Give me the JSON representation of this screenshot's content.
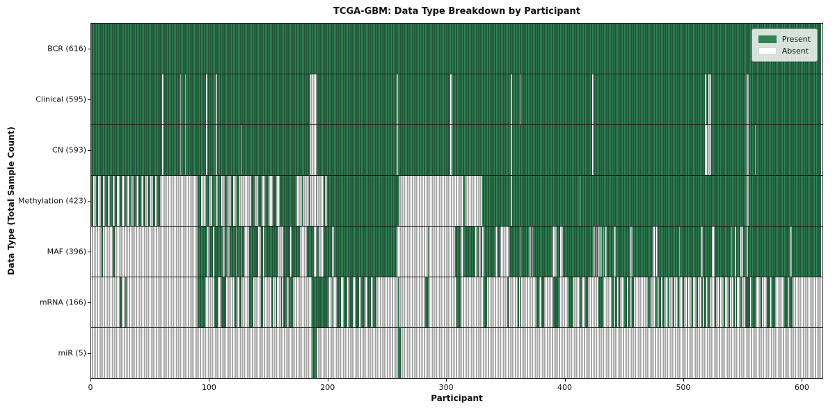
{
  "title": "TCGA-GBM: Data Type Breakdown by Participant",
  "xlabel": "Participant",
  "ylabel": "Data Type (Total Sample Count)",
  "legend": {
    "present_label": "Present",
    "absent_label": "Absent"
  },
  "colors": {
    "present_fill": "#338257",
    "present_edge": "#1f5638",
    "absent_fill": "#ffffff",
    "absent_edge": "#a6a6a6"
  },
  "chart_data": {
    "type": "heatmap",
    "title": "TCGA-GBM: Data Type Breakdown by Participant",
    "xlabel": "Participant",
    "ylabel": "Data Type (Total Sample Count)",
    "legend": [
      "Present",
      "Absent"
    ],
    "legend_position": "upper right",
    "n_participants": 616,
    "x_domain": [
      0,
      618
    ],
    "x_ticks": [
      0,
      100,
      200,
      300,
      400,
      500,
      600
    ],
    "rows": [
      {
        "name": "BCR",
        "label": "BCR (616)",
        "total": 616,
        "runs": [
          [
            0,
            616,
            "P"
          ]
        ]
      },
      {
        "name": "Clinical",
        "label": "Clinical (595)",
        "total": 595,
        "runs": [
          [
            0,
            60,
            "P"
          ],
          [
            60,
            61,
            "A"
          ],
          [
            61,
            75,
            "P"
          ],
          [
            75,
            76,
            "A"
          ],
          [
            76,
            79,
            "P"
          ],
          [
            79,
            80,
            "A"
          ],
          [
            80,
            97,
            "P"
          ],
          [
            97,
            98,
            "A"
          ],
          [
            98,
            105,
            "P"
          ],
          [
            105,
            106,
            "A"
          ],
          [
            106,
            185,
            "P"
          ],
          [
            185,
            190,
            "A"
          ],
          [
            190,
            258,
            "P"
          ],
          [
            258,
            259,
            "A"
          ],
          [
            259,
            303,
            "P"
          ],
          [
            303,
            305,
            "A"
          ],
          [
            305,
            354,
            "P"
          ],
          [
            354,
            355,
            "A"
          ],
          [
            355,
            362,
            "P"
          ],
          [
            362,
            363,
            "A"
          ],
          [
            363,
            423,
            "P"
          ],
          [
            423,
            424,
            "A"
          ],
          [
            424,
            518,
            "P"
          ],
          [
            518,
            519,
            "A"
          ],
          [
            519,
            521,
            "P"
          ],
          [
            521,
            523,
            "A"
          ],
          [
            523,
            553,
            "P"
          ],
          [
            553,
            555,
            "A"
          ],
          [
            555,
            616,
            "P"
          ]
        ]
      },
      {
        "name": "CN",
        "label": "CN (593)",
        "total": 593,
        "runs": [
          [
            0,
            60,
            "P"
          ],
          [
            60,
            61,
            "A"
          ],
          [
            61,
            75,
            "P"
          ],
          [
            75,
            76,
            "A"
          ],
          [
            76,
            79,
            "P"
          ],
          [
            79,
            80,
            "A"
          ],
          [
            80,
            97,
            "P"
          ],
          [
            97,
            98,
            "A"
          ],
          [
            98,
            105,
            "P"
          ],
          [
            105,
            106,
            "A"
          ],
          [
            106,
            126,
            "P"
          ],
          [
            126,
            127,
            "A"
          ],
          [
            127,
            185,
            "P"
          ],
          [
            185,
            190,
            "A"
          ],
          [
            190,
            258,
            "P"
          ],
          [
            258,
            259,
            "A"
          ],
          [
            259,
            303,
            "P"
          ],
          [
            303,
            305,
            "A"
          ],
          [
            305,
            354,
            "P"
          ],
          [
            354,
            355,
            "A"
          ],
          [
            355,
            423,
            "P"
          ],
          [
            423,
            424,
            "A"
          ],
          [
            424,
            518,
            "P"
          ],
          [
            518,
            520,
            "A"
          ],
          [
            520,
            521,
            "P"
          ],
          [
            521,
            523,
            "A"
          ],
          [
            523,
            553,
            "P"
          ],
          [
            553,
            555,
            "A"
          ],
          [
            555,
            560,
            "P"
          ],
          [
            560,
            561,
            "A"
          ],
          [
            561,
            616,
            "P"
          ]
        ]
      },
      {
        "name": "Methylation",
        "label": "Methylation (423)",
        "total": 423,
        "runs": [
          [
            0,
            60,
            "M",
            2,
            2
          ],
          [
            60,
            90,
            "A"
          ],
          [
            90,
            93,
            "P"
          ],
          [
            93,
            97,
            "A"
          ],
          [
            97,
            108,
            "M",
            3,
            2
          ],
          [
            108,
            125,
            "M",
            2,
            3
          ],
          [
            125,
            135,
            "A"
          ],
          [
            135,
            162,
            "M",
            3,
            3
          ],
          [
            162,
            172,
            "P"
          ],
          [
            172,
            199,
            "M",
            1,
            5
          ],
          [
            199,
            260,
            "P"
          ],
          [
            260,
            314,
            "A"
          ],
          [
            314,
            316,
            "P"
          ],
          [
            316,
            330,
            "A"
          ],
          [
            330,
            354,
            "P"
          ],
          [
            354,
            355,
            "A"
          ],
          [
            355,
            412,
            "P"
          ],
          [
            412,
            413,
            "A"
          ],
          [
            413,
            553,
            "P"
          ],
          [
            553,
            555,
            "A"
          ],
          [
            555,
            616,
            "P"
          ]
        ]
      },
      {
        "name": "MAF",
        "label": "MAF (396)",
        "total": 396,
        "runs": [
          [
            0,
            9,
            "A"
          ],
          [
            9,
            10,
            "P"
          ],
          [
            10,
            18,
            "A"
          ],
          [
            18,
            20,
            "P"
          ],
          [
            20,
            90,
            "A"
          ],
          [
            90,
            98,
            "P"
          ],
          [
            98,
            100,
            "A"
          ],
          [
            100,
            103,
            "P"
          ],
          [
            103,
            104,
            "A"
          ],
          [
            104,
            109,
            "P"
          ],
          [
            109,
            119,
            "M",
            2,
            2
          ],
          [
            119,
            129,
            "M",
            3,
            1
          ],
          [
            129,
            133,
            "A"
          ],
          [
            133,
            141,
            "P"
          ],
          [
            141,
            143,
            "A"
          ],
          [
            143,
            145,
            "P"
          ],
          [
            145,
            146,
            "A"
          ],
          [
            146,
            158,
            "P"
          ],
          [
            158,
            162,
            "A"
          ],
          [
            162,
            168,
            "P"
          ],
          [
            168,
            169,
            "A"
          ],
          [
            169,
            176,
            "P"
          ],
          [
            176,
            182,
            "A"
          ],
          [
            182,
            188,
            "P"
          ],
          [
            188,
            190,
            "A"
          ],
          [
            190,
            192,
            "P"
          ],
          [
            192,
            196,
            "A"
          ],
          [
            196,
            203,
            "P"
          ],
          [
            203,
            205,
            "A"
          ],
          [
            205,
            258,
            "P"
          ],
          [
            258,
            284,
            "A"
          ],
          [
            284,
            285,
            "P"
          ],
          [
            285,
            307,
            "A"
          ],
          [
            307,
            312,
            "P"
          ],
          [
            312,
            314,
            "A"
          ],
          [
            314,
            323,
            "P"
          ],
          [
            323,
            333,
            "M",
            1,
            2
          ],
          [
            333,
            341,
            "P"
          ],
          [
            341,
            343,
            "A"
          ],
          [
            343,
            345,
            "P"
          ],
          [
            345,
            353,
            "A"
          ],
          [
            353,
            362,
            "P"
          ],
          [
            362,
            363,
            "A"
          ],
          [
            363,
            370,
            "P"
          ],
          [
            370,
            371,
            "A"
          ],
          [
            371,
            372,
            "P"
          ],
          [
            372,
            373,
            "A"
          ],
          [
            373,
            389,
            "P"
          ],
          [
            389,
            393,
            "A"
          ],
          [
            393,
            396,
            "P"
          ],
          [
            396,
            398,
            "A"
          ],
          [
            398,
            423,
            "P"
          ],
          [
            423,
            435,
            "M",
            1,
            1
          ],
          [
            435,
            441,
            "P"
          ],
          [
            441,
            443,
            "A"
          ],
          [
            443,
            455,
            "P"
          ],
          [
            455,
            457,
            "A"
          ],
          [
            457,
            474,
            "P"
          ],
          [
            474,
            476,
            "A"
          ],
          [
            476,
            477,
            "P"
          ],
          [
            477,
            478,
            "A"
          ],
          [
            478,
            496,
            "P"
          ],
          [
            496,
            497,
            "A"
          ],
          [
            497,
            515,
            "P"
          ],
          [
            515,
            516,
            "A"
          ],
          [
            516,
            524,
            "P"
          ],
          [
            524,
            526,
            "A"
          ],
          [
            526,
            540,
            "P"
          ],
          [
            540,
            541,
            "A"
          ],
          [
            541,
            543,
            "P"
          ],
          [
            543,
            544,
            "A"
          ],
          [
            544,
            548,
            "P"
          ],
          [
            548,
            550,
            "A"
          ],
          [
            550,
            553,
            "P"
          ],
          [
            553,
            554,
            "A"
          ],
          [
            554,
            590,
            "P"
          ],
          [
            590,
            591,
            "A"
          ],
          [
            591,
            616,
            "P"
          ]
        ]
      },
      {
        "name": "mRNA",
        "label": "mRNA (166)",
        "total": 166,
        "runs": [
          [
            0,
            24,
            "A"
          ],
          [
            24,
            26,
            "P"
          ],
          [
            26,
            29,
            "A"
          ],
          [
            29,
            30,
            "P"
          ],
          [
            30,
            90,
            "A"
          ],
          [
            90,
            96,
            "P"
          ],
          [
            96,
            104,
            "A"
          ],
          [
            104,
            107,
            "P"
          ],
          [
            107,
            110,
            "A"
          ],
          [
            110,
            114,
            "P"
          ],
          [
            114,
            121,
            "A"
          ],
          [
            121,
            129,
            "M",
            2,
            2
          ],
          [
            129,
            133,
            "A"
          ],
          [
            133,
            137,
            "P"
          ],
          [
            137,
            143,
            "A"
          ],
          [
            143,
            145,
            "P"
          ],
          [
            145,
            152,
            "A"
          ],
          [
            152,
            162,
            "M",
            1,
            3
          ],
          [
            162,
            172,
            "M",
            3,
            2
          ],
          [
            172,
            186,
            "A"
          ],
          [
            186,
            199,
            "P"
          ],
          [
            199,
            208,
            "M",
            1,
            3
          ],
          [
            208,
            241,
            "M",
            3,
            2
          ],
          [
            241,
            259,
            "A"
          ],
          [
            259,
            260,
            "P"
          ],
          [
            260,
            282,
            "A"
          ],
          [
            282,
            285,
            "P"
          ],
          [
            285,
            308,
            "A"
          ],
          [
            308,
            312,
            "P"
          ],
          [
            312,
            331,
            "A"
          ],
          [
            331,
            334,
            "P"
          ],
          [
            334,
            351,
            "A"
          ],
          [
            351,
            352,
            "P"
          ],
          [
            352,
            360,
            "A"
          ],
          [
            360,
            364,
            "M",
            1,
            1
          ],
          [
            364,
            376,
            "A"
          ],
          [
            376,
            384,
            "M",
            2,
            2
          ],
          [
            384,
            390,
            "A"
          ],
          [
            390,
            395,
            "P"
          ],
          [
            395,
            403,
            "A"
          ],
          [
            403,
            407,
            "P"
          ],
          [
            407,
            412,
            "A"
          ],
          [
            412,
            422,
            "M",
            2,
            3
          ],
          [
            422,
            428,
            "A"
          ],
          [
            428,
            432,
            "P"
          ],
          [
            432,
            439,
            "A"
          ],
          [
            439,
            446,
            "M",
            2,
            1
          ],
          [
            446,
            450,
            "A"
          ],
          [
            450,
            458,
            "M",
            2,
            1
          ],
          [
            458,
            470,
            "A"
          ],
          [
            470,
            472,
            "P"
          ],
          [
            472,
            476,
            "A"
          ],
          [
            476,
            484,
            "M",
            2,
            1
          ],
          [
            484,
            487,
            "A"
          ],
          [
            487,
            503,
            "M",
            1,
            3
          ],
          [
            503,
            517,
            "M",
            1,
            3
          ],
          [
            517,
            522,
            "M",
            2,
            1
          ],
          [
            522,
            526,
            "A"
          ],
          [
            526,
            544,
            "M",
            1,
            3
          ],
          [
            544,
            553,
            "M",
            1,
            3
          ],
          [
            553,
            560,
            "M",
            3,
            1
          ],
          [
            560,
            570,
            "M",
            1,
            4
          ],
          [
            570,
            578,
            "M",
            3,
            1
          ],
          [
            578,
            585,
            "A"
          ],
          [
            585,
            592,
            "M",
            3,
            1
          ],
          [
            592,
            616,
            "A"
          ]
        ]
      },
      {
        "name": "miR",
        "label": "miR (5)",
        "total": 5,
        "runs": [
          [
            0,
            187,
            "A"
          ],
          [
            187,
            190,
            "P"
          ],
          [
            190,
            259,
            "A"
          ],
          [
            259,
            261,
            "P"
          ],
          [
            261,
            616,
            "A"
          ]
        ]
      }
    ]
  }
}
